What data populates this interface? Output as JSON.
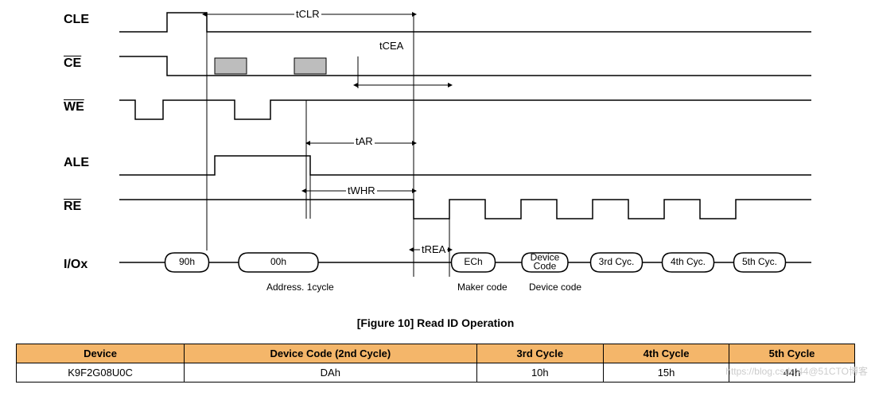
{
  "figure": {
    "signals": [
      "CLE",
      "CE",
      "WE",
      "ALE",
      "RE",
      "I/Ox"
    ],
    "signals_overline": [
      false,
      true,
      true,
      false,
      true,
      false
    ],
    "timing_labels": {
      "tCLR": "tCLR",
      "tCEA": "tCEA",
      "tAR": "tAR",
      "tWHR": "tWHR",
      "tREA": "tREA"
    },
    "io_bubbles": [
      "90h",
      "00h",
      "ECh",
      "Device\nCode",
      "3rd Cyc.",
      "4th Cyc.",
      "5th Cyc."
    ],
    "io_sublabels": {
      "address": "Address. 1cycle",
      "maker": "Maker code",
      "device": "Device code"
    },
    "caption": "[Figure 10] Read ID Operation",
    "stroke_color": "#000000",
    "stroke_width": 1.5,
    "hatch_fill": "#bdbdbd",
    "row_y": {
      "CLE": 0,
      "CE": 55,
      "WE": 110,
      "ALE": 180,
      "RE": 235,
      "IO": 300
    },
    "signal_font_size": 16
  },
  "table": {
    "headers": [
      "Device",
      "Device Code (2nd Cycle)",
      "3rd Cycle",
      "4th Cycle",
      "5th Cycle"
    ],
    "header_bg": "#f4b66a",
    "row": [
      "K9F2G08U0C",
      "DAh",
      "10h",
      "15h",
      "44h"
    ]
  },
  "watermark": "https://blog.csdn.44@51CTO博客"
}
